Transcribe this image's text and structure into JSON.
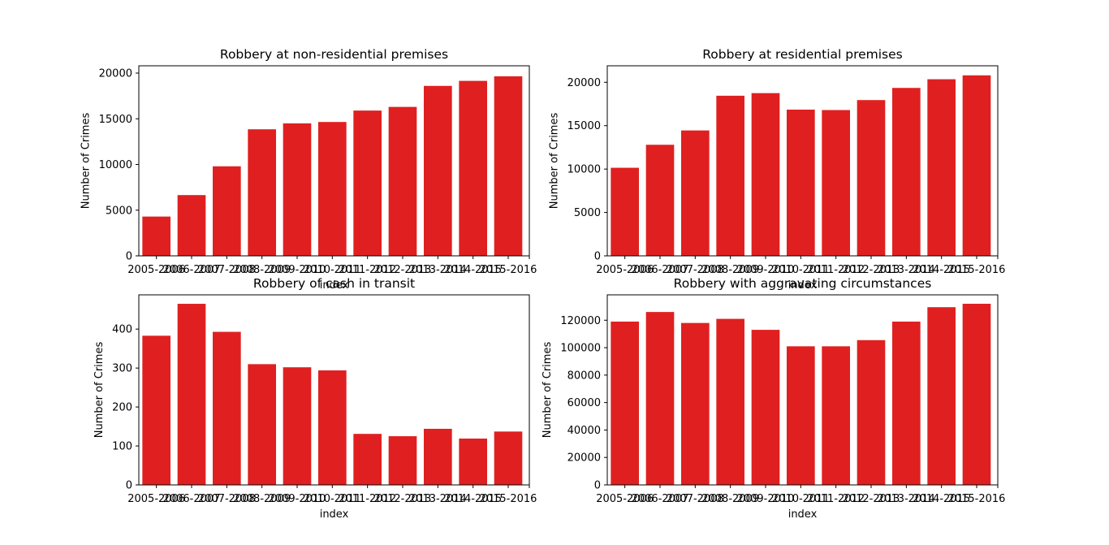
{
  "bar_color": "#e02020",
  "categories": [
    "2005-2006",
    "2006-2007",
    "2007-2008",
    "2008-2009",
    "2009-2010",
    "2010-2011",
    "2011-2012",
    "2012-2013",
    "2013-2014",
    "2014-2015",
    "2015-2016"
  ],
  "chart_data": [
    {
      "type": "bar",
      "title": "Robbery at non-residential premises",
      "xlabel": "index",
      "ylabel": "Number of Crimes",
      "ylim": [
        0,
        20800
      ],
      "yticks": [
        0,
        5000,
        10000,
        15000,
        20000
      ],
      "values": [
        4300,
        6650,
        9800,
        13850,
        14500,
        14650,
        15900,
        16300,
        18600,
        19150,
        19650
      ]
    },
    {
      "type": "bar",
      "title": "Robbery at residential premises",
      "xlabel": "index",
      "ylabel": "Number of Crimes",
      "ylim": [
        0,
        21900
      ],
      "yticks": [
        0,
        5000,
        10000,
        15000,
        20000
      ],
      "values": [
        10150,
        12800,
        14450,
        18450,
        18750,
        16850,
        16800,
        17950,
        19350,
        20350,
        20800
      ]
    },
    {
      "type": "bar",
      "title": "Robbery of cash in transit",
      "xlabel": "index",
      "ylabel": "Number of Crimes",
      "ylim": [
        0,
        488
      ],
      "yticks": [
        0,
        100,
        200,
        300,
        400
      ],
      "values": [
        383,
        465,
        393,
        310,
        302,
        294,
        131,
        125,
        144,
        119,
        137
      ]
    },
    {
      "type": "bar",
      "title": "Robbery with aggravating circumstances",
      "xlabel": "index",
      "ylabel": "Number of Crimes",
      "ylim": [
        0,
        138500
      ],
      "yticks": [
        0,
        20000,
        40000,
        60000,
        80000,
        100000,
        120000
      ],
      "values": [
        119000,
        126000,
        118000,
        121000,
        113000,
        101000,
        101000,
        105500,
        119000,
        129500,
        132000
      ]
    }
  ]
}
